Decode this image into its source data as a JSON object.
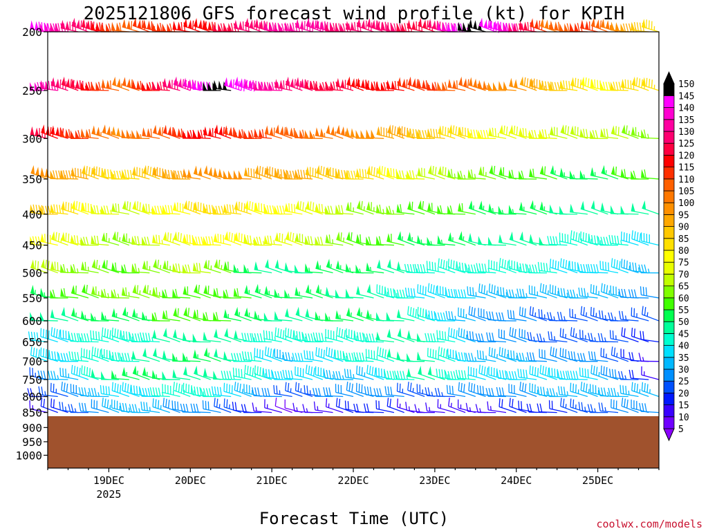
{
  "chart_data": {
    "type": "wind-barb-profile",
    "title": "2025121806 GFS forecast wind profile (kt) for KPIH",
    "xlabel": "Forecast Time (UTC)",
    "ylabel": "",
    "y_ticks": [
      "200",
      "250",
      "300",
      "350",
      "400",
      "450",
      "500",
      "550",
      "600",
      "650",
      "700",
      "750",
      "800",
      "850",
      "900",
      "950",
      "1000"
    ],
    "y_values": [
      200,
      250,
      300,
      350,
      400,
      450,
      500,
      550,
      600,
      650,
      700,
      750,
      800,
      850,
      900,
      950,
      1000
    ],
    "y_range": [
      200,
      1050
    ],
    "x_range_hours": [
      0,
      180
    ],
    "x_ticks": [
      {
        "label": "19DEC",
        "sublabel": "2025",
        "hour": 18
      },
      {
        "label": "20DEC",
        "sublabel": "",
        "hour": 42
      },
      {
        "label": "21DEC",
        "sublabel": "",
        "hour": 66
      },
      {
        "label": "22DEC",
        "sublabel": "",
        "hour": 90
      },
      {
        "label": "23DEC",
        "sublabel": "",
        "hour": 114
      },
      {
        "label": "24DEC",
        "sublabel": "",
        "hour": 138
      },
      {
        "label": "25DEC",
        "sublabel": "",
        "hour": 162
      }
    ],
    "barb_hours_step": 3,
    "surface_pressure_hpa": 862,
    "wind_speed_by_level_kt": [
      {
        "level": 200,
        "anchors": [
          [
            0,
            145
          ],
          [
            24,
            110
          ],
          [
            48,
            120
          ],
          [
            72,
            135
          ],
          [
            96,
            130
          ],
          [
            114,
            125
          ],
          [
            126,
            150
          ],
          [
            138,
            140
          ],
          [
            150,
            105
          ],
          [
            162,
            115
          ],
          [
            180,
            85
          ]
        ]
      },
      {
        "level": 250,
        "anchors": [
          [
            0,
            140
          ],
          [
            24,
            105
          ],
          [
            48,
            145
          ],
          [
            54,
            150
          ],
          [
            72,
            130
          ],
          [
            96,
            120
          ],
          [
            114,
            115
          ],
          [
            138,
            100
          ],
          [
            162,
            80
          ],
          [
            180,
            85
          ]
        ]
      },
      {
        "level": 300,
        "anchors": [
          [
            0,
            125
          ],
          [
            24,
            100
          ],
          [
            48,
            120
          ],
          [
            72,
            110
          ],
          [
            96,
            100
          ],
          [
            114,
            90
          ],
          [
            138,
            75
          ],
          [
            162,
            70
          ],
          [
            180,
            65
          ]
        ]
      },
      {
        "level": 350,
        "anchors": [
          [
            0,
            100
          ],
          [
            24,
            85
          ],
          [
            48,
            100
          ],
          [
            72,
            95
          ],
          [
            96,
            85
          ],
          [
            114,
            70
          ],
          [
            138,
            60
          ],
          [
            162,
            55
          ],
          [
            180,
            60
          ]
        ]
      },
      {
        "level": 400,
        "anchors": [
          [
            0,
            90
          ],
          [
            24,
            70
          ],
          [
            48,
            85
          ],
          [
            72,
            80
          ],
          [
            96,
            65
          ],
          [
            114,
            60
          ],
          [
            138,
            55
          ],
          [
            162,
            50
          ],
          [
            180,
            50
          ]
        ]
      },
      {
        "level": 450,
        "anchors": [
          [
            0,
            80
          ],
          [
            24,
            65
          ],
          [
            48,
            80
          ],
          [
            72,
            75
          ],
          [
            96,
            60
          ],
          [
            114,
            55
          ],
          [
            138,
            50
          ],
          [
            162,
            45
          ],
          [
            180,
            40
          ]
        ]
      },
      {
        "level": 500,
        "anchors": [
          [
            0,
            70
          ],
          [
            24,
            60
          ],
          [
            48,
            70
          ],
          [
            66,
            50
          ],
          [
            96,
            55
          ],
          [
            114,
            45
          ],
          [
            138,
            45
          ],
          [
            162,
            40
          ],
          [
            180,
            35
          ]
        ]
      },
      {
        "level": 550,
        "anchors": [
          [
            0,
            55
          ],
          [
            24,
            65
          ],
          [
            48,
            60
          ],
          [
            72,
            55
          ],
          [
            96,
            50
          ],
          [
            114,
            40
          ],
          [
            138,
            35
          ],
          [
            162,
            35
          ],
          [
            180,
            30
          ]
        ]
      },
      {
        "level": 600,
        "anchors": [
          [
            0,
            50
          ],
          [
            24,
            55
          ],
          [
            48,
            60
          ],
          [
            72,
            50
          ],
          [
            96,
            55
          ],
          [
            114,
            45
          ],
          [
            130,
            30
          ],
          [
            162,
            25
          ],
          [
            180,
            25
          ]
        ]
      },
      {
        "level": 650,
        "anchors": [
          [
            0,
            40
          ],
          [
            24,
            45
          ],
          [
            48,
            50
          ],
          [
            72,
            45
          ],
          [
            90,
            45
          ],
          [
            114,
            50
          ],
          [
            130,
            30
          ],
          [
            162,
            25
          ],
          [
            180,
            20
          ]
        ]
      },
      {
        "level": 700,
        "anchors": [
          [
            0,
            40
          ],
          [
            24,
            45
          ],
          [
            48,
            55
          ],
          [
            72,
            35
          ],
          [
            96,
            45
          ],
          [
            114,
            50
          ],
          [
            130,
            35
          ],
          [
            162,
            30
          ],
          [
            180,
            15
          ]
        ]
      },
      {
        "level": 750,
        "anchors": [
          [
            0,
            25
          ],
          [
            24,
            55
          ],
          [
            48,
            50
          ],
          [
            72,
            40
          ],
          [
            96,
            35
          ],
          [
            114,
            50
          ],
          [
            130,
            40
          ],
          [
            162,
            40
          ],
          [
            180,
            15
          ]
        ]
      },
      {
        "level": 800,
        "anchors": [
          [
            0,
            20
          ],
          [
            24,
            40
          ],
          [
            48,
            45
          ],
          [
            72,
            25
          ],
          [
            96,
            30
          ],
          [
            114,
            25
          ],
          [
            130,
            30
          ],
          [
            162,
            35
          ],
          [
            180,
            35
          ]
        ]
      },
      {
        "level": 850,
        "anchors": [
          [
            0,
            15
          ],
          [
            24,
            35
          ],
          [
            48,
            30
          ],
          [
            72,
            10
          ],
          [
            96,
            20
          ],
          [
            114,
            15
          ],
          [
            130,
            15
          ],
          [
            162,
            25
          ],
          [
            180,
            30
          ]
        ]
      }
    ],
    "colorbar": {
      "values": [
        5,
        10,
        15,
        20,
        25,
        30,
        35,
        40,
        45,
        50,
        55,
        60,
        65,
        70,
        75,
        80,
        85,
        90,
        95,
        100,
        105,
        110,
        115,
        120,
        125,
        130,
        135,
        140,
        145,
        150
      ],
      "labels": [
        "5",
        "10",
        "15",
        "20",
        "25",
        "30",
        "35",
        "40",
        "45",
        "50",
        "55",
        "60",
        "65",
        "70",
        "75",
        "80",
        "85",
        "90",
        "95",
        "100",
        "105",
        "110",
        "115",
        "120",
        "125",
        "130",
        "135",
        "140",
        "145",
        "150"
      ],
      "colors": [
        "#8a00ff",
        "#7000ff",
        "#3a00ff",
        "#0018ff",
        "#0050ff",
        "#0090ff",
        "#00b8ff",
        "#00e0ff",
        "#00ffd0",
        "#00ff9a",
        "#00ff50",
        "#40ff00",
        "#80ff00",
        "#c0ff00",
        "#e8ff00",
        "#ffff00",
        "#ffe000",
        "#ffc800",
        "#ffa800",
        "#ff9000",
        "#ff7800",
        "#ff6000",
        "#ff3000",
        "#ff0000",
        "#ff0040",
        "#ff0070",
        "#ff00a0",
        "#ff00d0",
        "#ff00ff",
        "#000000"
      ]
    },
    "ground_color": "#a0522d",
    "credit": "coolwx.com/models",
    "credit_color": "#c8102e"
  }
}
